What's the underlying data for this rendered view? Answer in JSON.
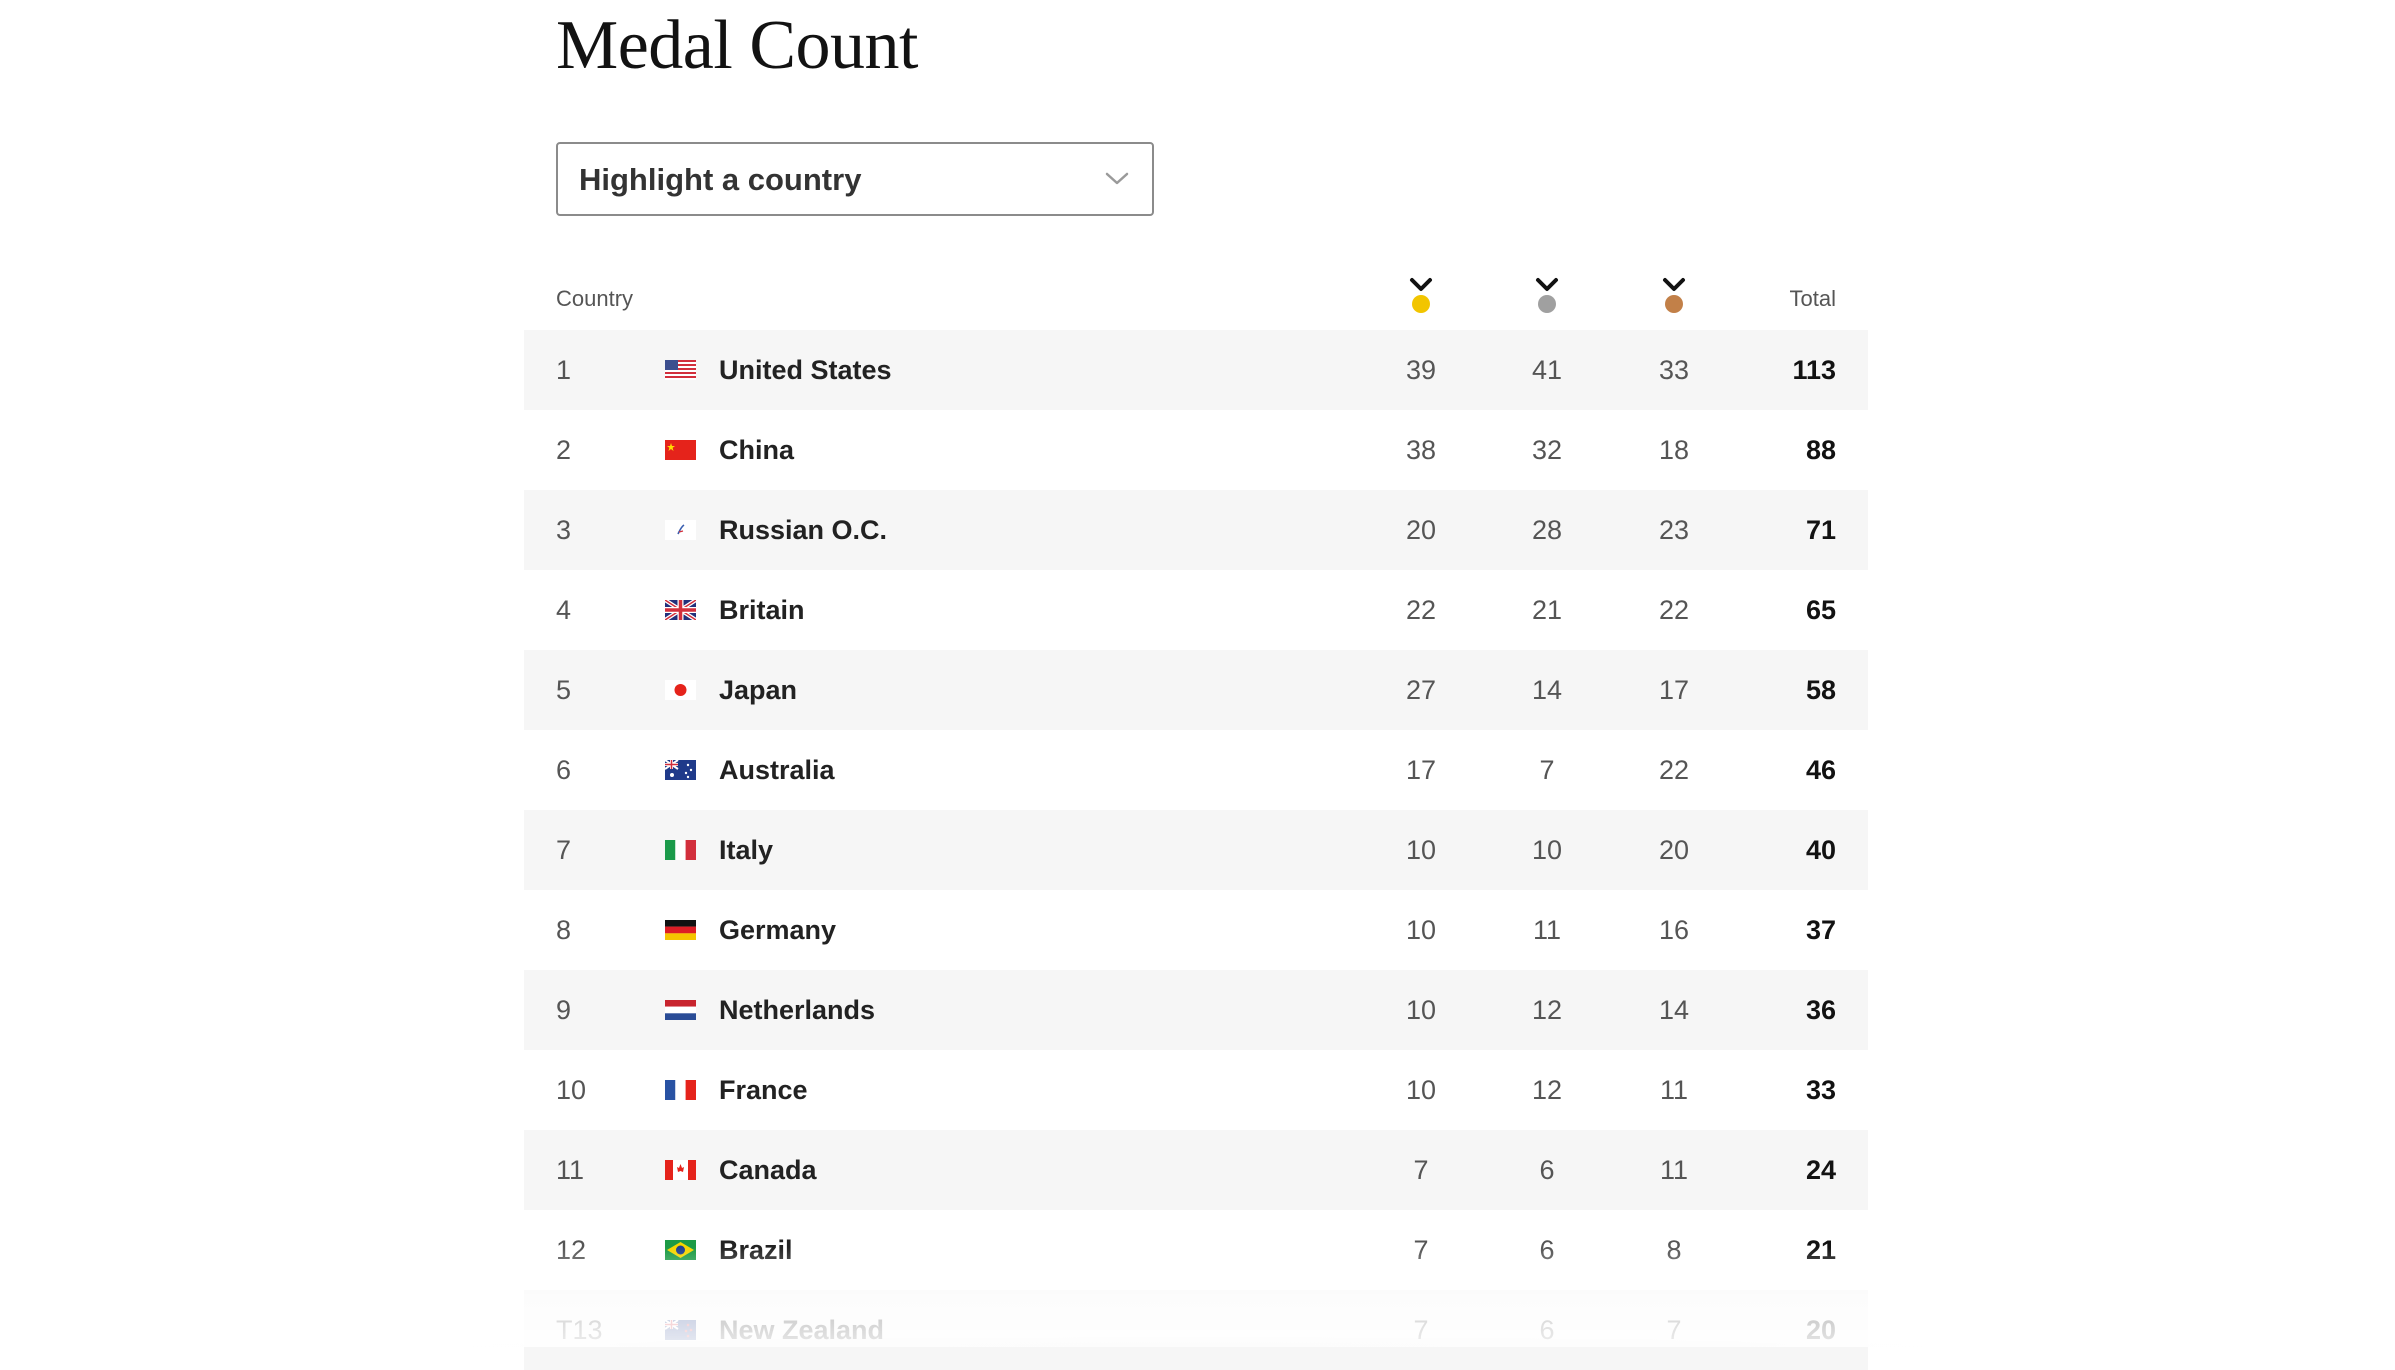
{
  "title": "Medal Count",
  "selector": {
    "label": "Highlight a country",
    "icon": "chevron-down-icon"
  },
  "headers": {
    "country": "Country",
    "total": "Total",
    "medal_icons": [
      "gold-medal-icon",
      "silver-medal-icon",
      "bronze-medal-icon"
    ]
  },
  "colors": {
    "gold": "#f2c500",
    "silver": "#a0a0a0",
    "bronze": "#c28048",
    "row_shade": "#f6f6f6"
  },
  "rows": [
    {
      "rank": "1",
      "country": "United States",
      "flag": "flag-us-icon",
      "gold": "39",
      "silver": "41",
      "bronze": "33",
      "total": "113"
    },
    {
      "rank": "2",
      "country": "China",
      "flag": "flag-cn-icon",
      "gold": "38",
      "silver": "32",
      "bronze": "18",
      "total": "88"
    },
    {
      "rank": "3",
      "country": "Russian O.C.",
      "flag": "flag-roc-icon",
      "gold": "20",
      "silver": "28",
      "bronze": "23",
      "total": "71"
    },
    {
      "rank": "4",
      "country": "Britain",
      "flag": "flag-gb-icon",
      "gold": "22",
      "silver": "21",
      "bronze": "22",
      "total": "65"
    },
    {
      "rank": "5",
      "country": "Japan",
      "flag": "flag-jp-icon",
      "gold": "27",
      "silver": "14",
      "bronze": "17",
      "total": "58"
    },
    {
      "rank": "6",
      "country": "Australia",
      "flag": "flag-au-icon",
      "gold": "17",
      "silver": "7",
      "bronze": "22",
      "total": "46"
    },
    {
      "rank": "7",
      "country": "Italy",
      "flag": "flag-it-icon",
      "gold": "10",
      "silver": "10",
      "bronze": "20",
      "total": "40"
    },
    {
      "rank": "8",
      "country": "Germany",
      "flag": "flag-de-icon",
      "gold": "10",
      "silver": "11",
      "bronze": "16",
      "total": "37"
    },
    {
      "rank": "9",
      "country": "Netherlands",
      "flag": "flag-nl-icon",
      "gold": "10",
      "silver": "12",
      "bronze": "14",
      "total": "36"
    },
    {
      "rank": "10",
      "country": "France",
      "flag": "flag-fr-icon",
      "gold": "10",
      "silver": "12",
      "bronze": "11",
      "total": "33"
    },
    {
      "rank": "11",
      "country": "Canada",
      "flag": "flag-ca-icon",
      "gold": "7",
      "silver": "6",
      "bronze": "11",
      "total": "24"
    },
    {
      "rank": "12",
      "country": "Brazil",
      "flag": "flag-br-icon",
      "gold": "7",
      "silver": "6",
      "bronze": "8",
      "total": "21"
    },
    {
      "rank": "T13",
      "country": "New Zealand",
      "flag": "flag-nz-icon",
      "gold": "7",
      "silver": "6",
      "bronze": "7",
      "total": "20"
    }
  ]
}
